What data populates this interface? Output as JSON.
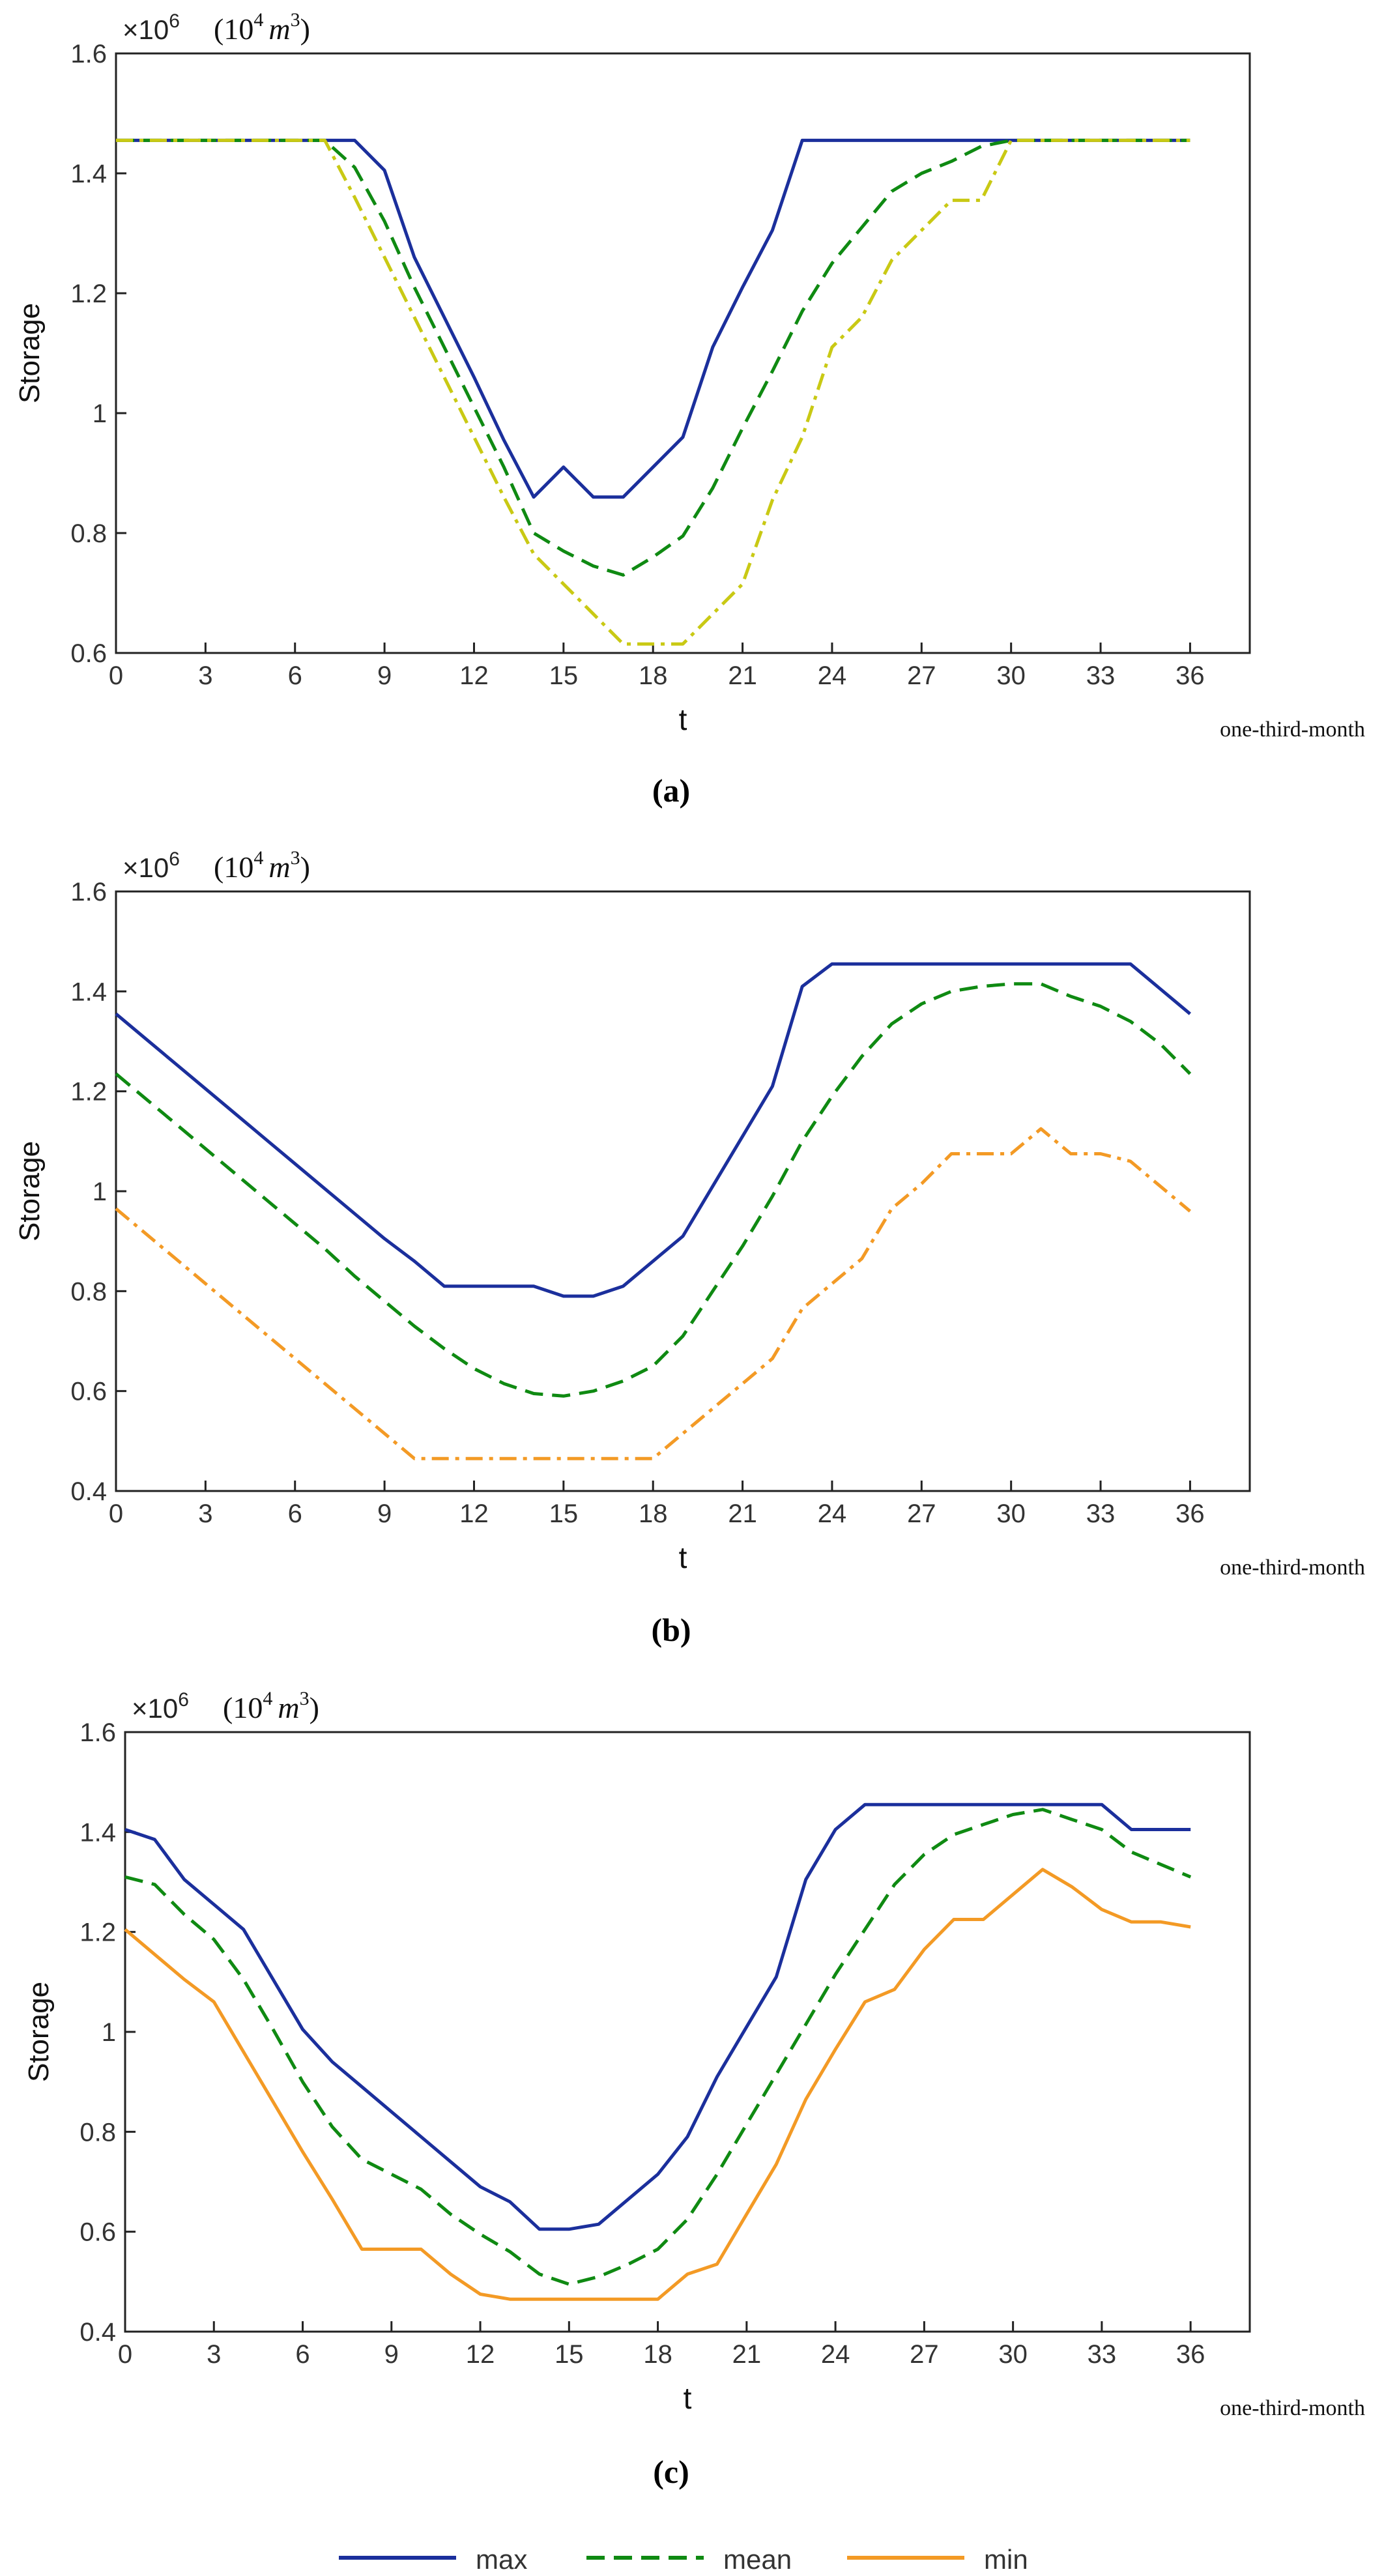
{
  "colors": {
    "max": "#1b2f9c",
    "mean": "#0f8a12",
    "min_a": "#c9c914",
    "min": "#f39a25",
    "axis": "#000000"
  },
  "legend": {
    "entries": [
      {
        "name": "max",
        "color": "#1b2f9c",
        "dash": "solid"
      },
      {
        "name": "mean",
        "color": "#0f8a12",
        "dash": "dashed"
      },
      {
        "name": "min",
        "color": "#f39a25",
        "dash": "solid"
      }
    ]
  },
  "chart_data": [
    {
      "type": "line",
      "caption": "(a)",
      "ylabel": "Storage",
      "xlabel": "t",
      "xunit": "one-third-month",
      "exponent_base": "×10",
      "exponent_power": "6",
      "unit_open": "(10",
      "unit_power": "4",
      "unit_var": "m",
      "unit_var_power": "3",
      "unit_close": ")",
      "xlim": [
        0,
        38
      ],
      "ylim": [
        0.6,
        1.6
      ],
      "xticks": [
        0,
        3,
        6,
        9,
        12,
        15,
        18,
        21,
        24,
        27,
        30,
        33,
        36
      ],
      "xtick_labels": [
        "0",
        "3",
        "6",
        "9",
        "12",
        "15",
        "18",
        "21",
        "24",
        "27",
        "30",
        "33",
        "36"
      ],
      "yticks": [
        0.6,
        0.8,
        1.0,
        1.2,
        1.4,
        1.6
      ],
      "ytick_labels": [
        "0.6",
        "0.8",
        "1",
        "1.2",
        "1.4",
        "1.6"
      ],
      "x": [
        0,
        1,
        2,
        3,
        4,
        5,
        6,
        7,
        8,
        9,
        10,
        11,
        12,
        13,
        14,
        15,
        16,
        17,
        18,
        19,
        20,
        21,
        22,
        23,
        24,
        25,
        26,
        27,
        28,
        29,
        30,
        31,
        32,
        33,
        34,
        35,
        36
      ],
      "series": [
        {
          "name": "max",
          "color": "#1b2f9c",
          "dash": "solid",
          "values": [
            1.455,
            1.455,
            1.455,
            1.455,
            1.455,
            1.455,
            1.455,
            1.455,
            1.455,
            1.405,
            1.26,
            1.16,
            1.06,
            0.955,
            0.86,
            0.91,
            0.86,
            0.86,
            0.91,
            0.96,
            1.11,
            1.21,
            1.305,
            1.455,
            1.455,
            1.455,
            1.455,
            1.455,
            1.455,
            1.455,
            1.455,
            1.455,
            1.455,
            1.455,
            1.455,
            1.455,
            1.455
          ]
        },
        {
          "name": "mean",
          "color": "#0f8a12",
          "dash": "dashed",
          "values": [
            1.455,
            1.455,
            1.455,
            1.455,
            1.455,
            1.455,
            1.455,
            1.455,
            1.41,
            1.32,
            1.21,
            1.11,
            1.01,
            0.91,
            0.8,
            0.77,
            0.745,
            0.73,
            0.76,
            0.795,
            0.875,
            0.975,
            1.07,
            1.17,
            1.25,
            1.31,
            1.37,
            1.4,
            1.42,
            1.445,
            1.455,
            1.455,
            1.455,
            1.455,
            1.455,
            1.455,
            1.455
          ]
        },
        {
          "name": "min",
          "color": "#c9c914",
          "dash": "dashdot",
          "values": [
            1.455,
            1.455,
            1.455,
            1.455,
            1.455,
            1.455,
            1.455,
            1.455,
            1.36,
            1.26,
            1.16,
            1.06,
            0.96,
            0.86,
            0.765,
            0.715,
            0.665,
            0.615,
            0.615,
            0.615,
            0.665,
            0.715,
            0.855,
            0.96,
            1.11,
            1.16,
            1.255,
            1.305,
            1.355,
            1.355,
            1.455,
            1.455,
            1.455,
            1.455,
            1.455,
            1.455,
            1.455
          ]
        }
      ]
    },
    {
      "type": "line",
      "caption": "(b)",
      "ylabel": "Storage",
      "xlabel": "t",
      "xunit": "one-third-month",
      "exponent_base": "×10",
      "exponent_power": "6",
      "unit_open": "(10",
      "unit_power": "4",
      "unit_var": "m",
      "unit_var_power": "3",
      "unit_close": ")",
      "xlim": [
        0,
        38
      ],
      "ylim": [
        0.4,
        1.6
      ],
      "xticks": [
        0,
        3,
        6,
        9,
        12,
        15,
        18,
        21,
        24,
        27,
        30,
        33,
        36
      ],
      "xtick_labels": [
        "0",
        "3",
        "6",
        "9",
        "12",
        "15",
        "18",
        "21",
        "24",
        "27",
        "30",
        "33",
        "36"
      ],
      "yticks": [
        0.4,
        0.6,
        0.8,
        1.0,
        1.2,
        1.4,
        1.6
      ],
      "ytick_labels": [
        "0.4",
        "0.6",
        "0.8",
        "1",
        "1.2",
        "1.4",
        "1.6"
      ],
      "x": [
        0,
        1,
        2,
        3,
        4,
        5,
        6,
        7,
        8,
        9,
        10,
        11,
        12,
        13,
        14,
        15,
        16,
        17,
        18,
        19,
        20,
        21,
        22,
        23,
        24,
        25,
        26,
        27,
        28,
        29,
        30,
        31,
        32,
        33,
        34,
        35,
        36
      ],
      "series": [
        {
          "name": "max",
          "color": "#1b2f9c",
          "dash": "solid",
          "values": [
            1.355,
            1.305,
            1.255,
            1.205,
            1.155,
            1.105,
            1.055,
            1.005,
            0.955,
            0.905,
            0.86,
            0.81,
            0.81,
            0.81,
            0.81,
            0.79,
            0.79,
            0.81,
            0.86,
            0.91,
            1.01,
            1.11,
            1.21,
            1.41,
            1.455,
            1.455,
            1.455,
            1.455,
            1.455,
            1.455,
            1.455,
            1.455,
            1.455,
            1.455,
            1.455,
            1.405,
            1.355
          ]
        },
        {
          "name": "mean",
          "color": "#0f8a12",
          "dash": "dashed",
          "values": [
            1.235,
            1.185,
            1.135,
            1.085,
            1.035,
            0.985,
            0.935,
            0.885,
            0.83,
            0.78,
            0.73,
            0.685,
            0.645,
            0.615,
            0.595,
            0.59,
            0.6,
            0.62,
            0.65,
            0.71,
            0.8,
            0.89,
            0.99,
            1.1,
            1.19,
            1.27,
            1.335,
            1.375,
            1.4,
            1.41,
            1.415,
            1.415,
            1.39,
            1.37,
            1.34,
            1.295,
            1.235
          ]
        },
        {
          "name": "min",
          "color": "#f39a25",
          "dash": "dashdot",
          "values": [
            0.965,
            0.915,
            0.865,
            0.815,
            0.765,
            0.715,
            0.665,
            0.615,
            0.565,
            0.515,
            0.465,
            0.465,
            0.465,
            0.465,
            0.465,
            0.465,
            0.465,
            0.465,
            0.465,
            0.515,
            0.565,
            0.615,
            0.665,
            0.765,
            0.815,
            0.865,
            0.965,
            1.015,
            1.075,
            1.075,
            1.075,
            1.125,
            1.075,
            1.075,
            1.06,
            1.01,
            0.96
          ]
        }
      ]
    },
    {
      "type": "line",
      "caption": "(c)",
      "ylabel": "Storage",
      "xlabel": "t",
      "xunit": "one-third-month",
      "exponent_base": "×10",
      "exponent_power": "6",
      "unit_open": "(10",
      "unit_power": "4",
      "unit_var": "m",
      "unit_var_power": "3",
      "unit_close": ")",
      "xlim": [
        0,
        38
      ],
      "ylim": [
        0.4,
        1.6
      ],
      "xticks": [
        0,
        3,
        6,
        9,
        12,
        15,
        18,
        21,
        24,
        27,
        30,
        33,
        36
      ],
      "xtick_labels": [
        "0",
        "3",
        "6",
        "9",
        "12",
        "15",
        "18",
        "21",
        "24",
        "27",
        "30",
        "33",
        "36"
      ],
      "yticks": [
        0.4,
        0.6,
        0.8,
        1.0,
        1.2,
        1.4,
        1.6
      ],
      "ytick_labels": [
        "0.4",
        "0.6",
        "0.8",
        "1",
        "1.2",
        "1.4",
        "1.6"
      ],
      "x": [
        0,
        1,
        2,
        3,
        4,
        5,
        6,
        7,
        8,
        9,
        10,
        11,
        12,
        13,
        14,
        15,
        16,
        17,
        18,
        19,
        20,
        21,
        22,
        23,
        24,
        25,
        26,
        27,
        28,
        29,
        30,
        31,
        32,
        33,
        34,
        35,
        36
      ],
      "series": [
        {
          "name": "max",
          "color": "#1b2f9c",
          "dash": "solid",
          "values": [
            1.405,
            1.385,
            1.305,
            1.255,
            1.205,
            1.105,
            1.005,
            0.94,
            0.89,
            0.84,
            0.79,
            0.74,
            0.69,
            0.66,
            0.605,
            0.605,
            0.615,
            0.665,
            0.715,
            0.79,
            0.91,
            1.01,
            1.11,
            1.305,
            1.405,
            1.455,
            1.455,
            1.455,
            1.455,
            1.455,
            1.455,
            1.455,
            1.455,
            1.455,
            1.405,
            1.405,
            1.405
          ]
        },
        {
          "name": "mean",
          "color": "#0f8a12",
          "dash": "dashed",
          "values": [
            1.31,
            1.295,
            1.235,
            1.185,
            1.105,
            1.005,
            0.9,
            0.81,
            0.745,
            0.715,
            0.685,
            0.635,
            0.595,
            0.56,
            0.515,
            0.495,
            0.51,
            0.535,
            0.565,
            0.625,
            0.715,
            0.815,
            0.915,
            1.015,
            1.115,
            1.205,
            1.295,
            1.355,
            1.395,
            1.415,
            1.435,
            1.445,
            1.425,
            1.405,
            1.36,
            1.335,
            1.31
          ]
        },
        {
          "name": "min",
          "color": "#f39a25",
          "dash": "solid",
          "values": [
            1.205,
            1.155,
            1.105,
            1.06,
            0.96,
            0.86,
            0.76,
            0.665,
            0.565,
            0.565,
            0.565,
            0.515,
            0.475,
            0.465,
            0.465,
            0.465,
            0.465,
            0.465,
            0.465,
            0.515,
            0.535,
            0.635,
            0.735,
            0.865,
            0.965,
            1.06,
            1.085,
            1.165,
            1.225,
            1.225,
            1.275,
            1.325,
            1.29,
            1.245,
            1.22,
            1.22,
            1.21
          ]
        }
      ]
    }
  ]
}
